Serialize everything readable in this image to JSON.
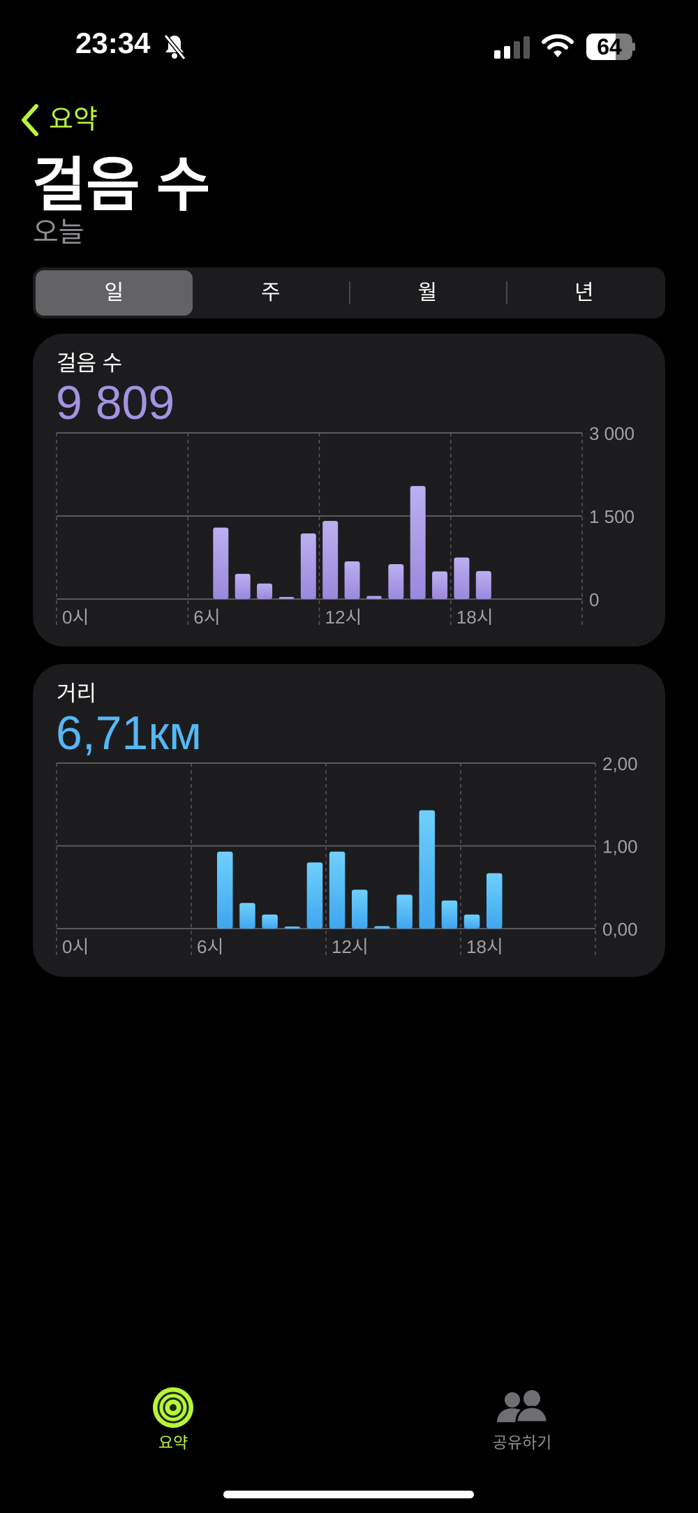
{
  "status_bar": {
    "time": "23:34",
    "battery": "64",
    "silent_icon": "bell-slash-icon"
  },
  "nav": {
    "back_label": "요약"
  },
  "header": {
    "title": "걸음 수",
    "subtitle": "오늘"
  },
  "segments": [
    {
      "label": "일",
      "selected": true
    },
    {
      "label": "주"
    },
    {
      "label": "월"
    },
    {
      "label": "년"
    }
  ],
  "cards": [
    {
      "label": "걸음 수",
      "value": "9 809",
      "color": "#a393e0"
    },
    {
      "label": "거리",
      "value": "6,71км",
      "color": "#55b8f5"
    }
  ],
  "chart_data": [
    {
      "type": "bar",
      "title": "걸음 수",
      "x_labels": [
        "0시",
        "6시",
        "12시",
        "18시"
      ],
      "y_labels": [
        "3 000",
        "1 500",
        "0"
      ],
      "ylim": [
        0,
        3000
      ],
      "grid": true,
      "hours": [
        7,
        8,
        9,
        10,
        11,
        12,
        13,
        14,
        15,
        16,
        17,
        18,
        19
      ],
      "values": [
        1290,
        455,
        280,
        35,
        1185,
        1410,
        680,
        55,
        630,
        2040,
        500,
        750,
        505
      ]
    },
    {
      "type": "bar",
      "title": "거리",
      "x_labels": [
        "0시",
        "6시",
        "12시",
        "18시"
      ],
      "y_labels": [
        "2,00",
        "1,00",
        "0,00"
      ],
      "ylim": [
        0,
        2
      ],
      "grid": true,
      "hours": [
        7,
        8,
        9,
        10,
        11,
        12,
        13,
        14,
        15,
        16,
        17,
        18,
        19
      ],
      "values": [
        0.93,
        0.31,
        0.17,
        0.01,
        0.8,
        0.93,
        0.47,
        0.03,
        0.41,
        1.43,
        0.34,
        0.17,
        0.67
      ]
    }
  ],
  "tabbar": {
    "items": [
      {
        "label": "요약",
        "selected": true,
        "color": "#b8f53a"
      },
      {
        "label": "공유하기"
      }
    ]
  }
}
